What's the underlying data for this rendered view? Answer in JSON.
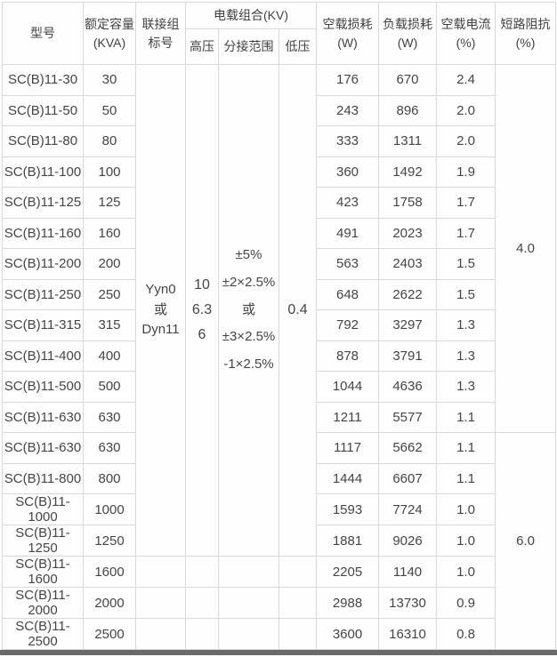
{
  "table": {
    "headers": {
      "model": "型号",
      "capacity": "额定容量\n(KVA)",
      "connection": "联接组\n标号",
      "voltage_group": "电载组合(KV)",
      "hv": "高压",
      "tap_range": "分接范围",
      "lv": "低压",
      "no_load_loss": "空载损耗\n(W)",
      "load_loss": "负载损耗\n(W)",
      "no_load_current": "空载电流\n(%)",
      "impedance": "短路阻抗\n(%)"
    },
    "shared": {
      "connection_group": "Yyn0\n或\nDyn11",
      "hv_values": "10\n6.3\n6",
      "tap_range": "±5%\n±2×2.5%\n或\n±3×2.5%\n-1×2.5%",
      "lv_value": "0.4",
      "impedance_first": "4.0",
      "impedance_second": "6.0"
    },
    "rows": [
      {
        "model": "SC(B)11-30",
        "kva": "30",
        "no_load_loss": "176",
        "load_loss": "670",
        "no_load_current": "2.4"
      },
      {
        "model": "SC(B)11-50",
        "kva": "50",
        "no_load_loss": "243",
        "load_loss": "896",
        "no_load_current": "2.0"
      },
      {
        "model": "SC(B)11-80",
        "kva": "80",
        "no_load_loss": "333",
        "load_loss": "1311",
        "no_load_current": "2.0"
      },
      {
        "model": "SC(B)11-100",
        "kva": "100",
        "no_load_loss": "360",
        "load_loss": "1492",
        "no_load_current": "1.9"
      },
      {
        "model": "SC(B)11-125",
        "kva": "125",
        "no_load_loss": "423",
        "load_loss": "1758",
        "no_load_current": "1.7"
      },
      {
        "model": "SC(B)11-160",
        "kva": "160",
        "no_load_loss": "491",
        "load_loss": "2023",
        "no_load_current": "1.7"
      },
      {
        "model": "SC(B)11-200",
        "kva": "200",
        "no_load_loss": "563",
        "load_loss": "2403",
        "no_load_current": "1.5"
      },
      {
        "model": "SC(B)11-250",
        "kva": "250",
        "no_load_loss": "648",
        "load_loss": "2622",
        "no_load_current": "1.5"
      },
      {
        "model": "SC(B)11-315",
        "kva": "315",
        "no_load_loss": "792",
        "load_loss": "3297",
        "no_load_current": "1.3"
      },
      {
        "model": "SC(B)11-400",
        "kva": "400",
        "no_load_loss": "878",
        "load_loss": "3791",
        "no_load_current": "1.3"
      },
      {
        "model": "SC(B)11-500",
        "kva": "500",
        "no_load_loss": "1044",
        "load_loss": "4636",
        "no_load_current": "1.3"
      },
      {
        "model": "SC(B)11-630",
        "kva": "630",
        "no_load_loss": "1211",
        "load_loss": "5577",
        "no_load_current": "1.1"
      },
      {
        "model": "SC(B)11-630",
        "kva": "630",
        "no_load_loss": "1117",
        "load_loss": "5662",
        "no_load_current": "1.1"
      },
      {
        "model": "SC(B)11-800",
        "kva": "800",
        "no_load_loss": "1444",
        "load_loss": "6607",
        "no_load_current": "1.1"
      },
      {
        "model": "SC(B)11-1000",
        "kva": "1000",
        "no_load_loss": "1593",
        "load_loss": "7724",
        "no_load_current": "1.0"
      },
      {
        "model": "SC(B)11-1250",
        "kva": "1250",
        "no_load_loss": "1881",
        "load_loss": "9026",
        "no_load_current": "1.0"
      },
      {
        "model": "SC(B)11-1600",
        "kva": "1600",
        "no_load_loss": "2205",
        "load_loss": "1140",
        "no_load_current": "1.0"
      },
      {
        "model": "SC(B)11-2000",
        "kva": "2000",
        "no_load_loss": "2988",
        "load_loss": "13730",
        "no_load_current": "0.9"
      },
      {
        "model": "SC(B)11-2500",
        "kva": "2500",
        "no_load_loss": "3600",
        "load_loss": "16310",
        "no_load_current": "0.8"
      }
    ],
    "layout_spans": {
      "middle_merge_rows": 16,
      "impedance_first_rows": 12,
      "impedance_second_rows": 7
    }
  },
  "colors": {
    "border": "#d9d9d9",
    "text": "#454545",
    "bottom_bar": "#6a6a6a",
    "background": "#fefefe"
  }
}
